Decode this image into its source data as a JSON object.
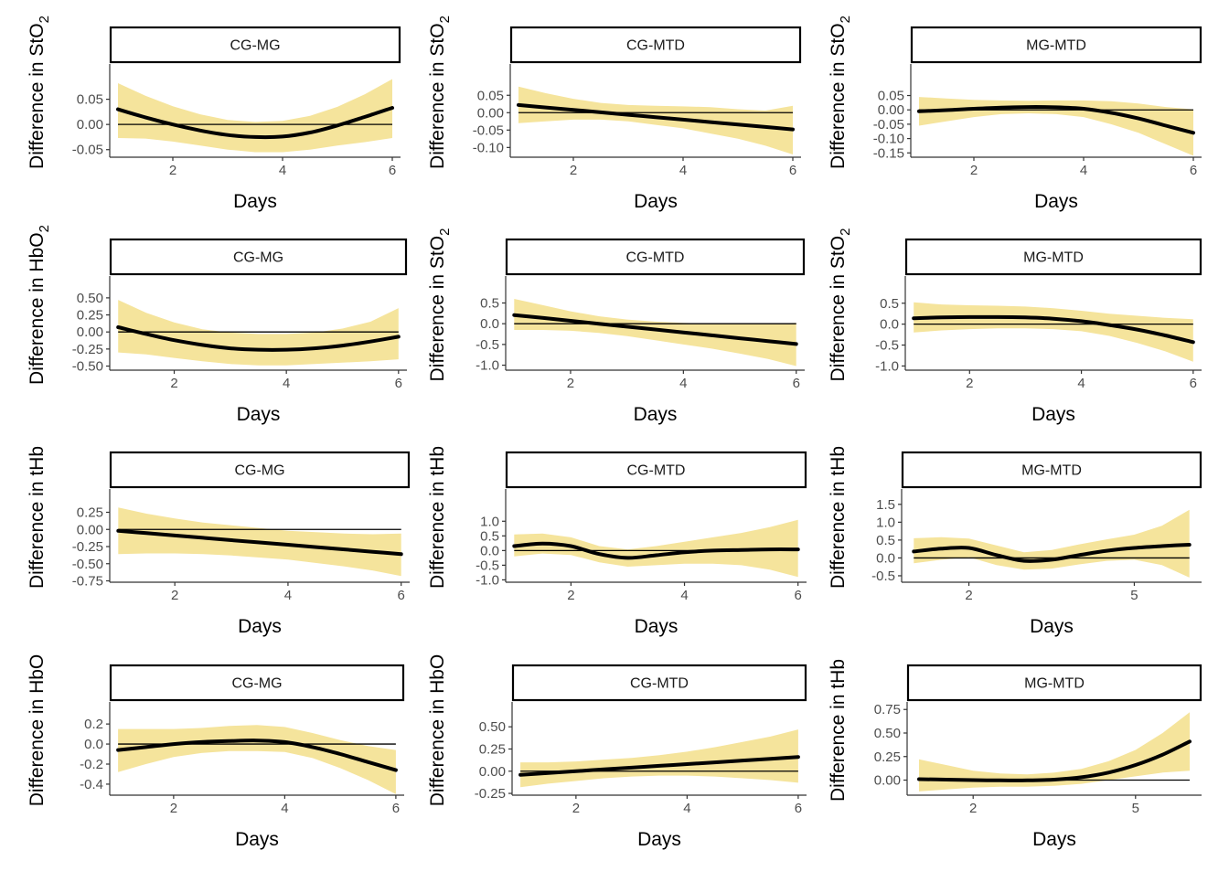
{
  "style": {
    "band_color": "#f5e49c",
    "line_color": "#000000",
    "ref_line_color": "#000000",
    "strip_border": "#000000",
    "axis_color": "#333333"
  },
  "chart_data": [
    {
      "type": "line",
      "strip": "CG-MG",
      "xlabel": "Days",
      "ylabel": "Difference in StO",
      "ylabel_sub": "2",
      "xlim": [
        0.85,
        6.15
      ],
      "ylim": [
        -0.065,
        0.12
      ],
      "xticks": [
        2,
        4,
        6
      ],
      "yticks": [
        -0.05,
        0,
        0.05
      ],
      "ytick_labels": [
        "-0.05",
        "0.00",
        "0.05"
      ],
      "x": [
        1,
        1.5,
        2,
        2.5,
        3,
        3.5,
        4,
        4.5,
        5,
        5.5,
        6
      ],
      "fit": [
        0.03,
        0.014,
        0.0,
        -0.012,
        -0.021,
        -0.025,
        -0.024,
        -0.016,
        -0.002,
        0.015,
        0.033
      ],
      "lower": [
        -0.027,
        -0.028,
        -0.034,
        -0.042,
        -0.05,
        -0.055,
        -0.055,
        -0.05,
        -0.042,
        -0.035,
        -0.027
      ],
      "upper": [
        0.082,
        0.057,
        0.036,
        0.02,
        0.009,
        0.005,
        0.007,
        0.017,
        0.035,
        0.06,
        0.09
      ]
    },
    {
      "type": "line",
      "strip": "CG-MTD",
      "xlabel": "Days",
      "ylabel": "Difference in StO",
      "ylabel_sub": "2",
      "xlim": [
        0.85,
        6.15
      ],
      "ylim": [
        -0.128,
        0.14
      ],
      "xticks": [
        2,
        4,
        6
      ],
      "yticks": [
        -0.1,
        -0.05,
        0,
        0.05
      ],
      "ytick_labels": [
        "-0.10",
        "-0.05",
        "0.00",
        "0.05"
      ],
      "x": [
        1,
        1.5,
        2,
        2.5,
        3,
        3.5,
        4,
        4.5,
        5,
        5.5,
        6
      ],
      "fit": [
        0.022,
        0.015,
        0.008,
        0.001,
        -0.006,
        -0.013,
        -0.02,
        -0.027,
        -0.034,
        -0.041,
        -0.048
      ],
      "lower": [
        -0.03,
        -0.025,
        -0.02,
        -0.02,
        -0.025,
        -0.035,
        -0.045,
        -0.06,
        -0.075,
        -0.095,
        -0.12
      ],
      "upper": [
        0.075,
        0.056,
        0.04,
        0.028,
        0.022,
        0.02,
        0.018,
        0.016,
        0.01,
        0.006,
        0.02
      ]
    },
    {
      "type": "line",
      "strip": "MG-MTD",
      "xlabel": "Days",
      "ylabel": "Difference in StO",
      "ylabel_sub": "2",
      "xlim": [
        0.85,
        6.15
      ],
      "ylim": [
        -0.165,
        0.16
      ],
      "xticks": [
        2,
        4,
        6
      ],
      "yticks": [
        -0.15,
        -0.1,
        -0.05,
        0,
        0.05
      ],
      "ytick_labels": [
        "-0.15",
        "-0.10",
        "-0.05",
        "0.00",
        "0.05"
      ],
      "x": [
        1,
        1.5,
        2,
        2.5,
        3,
        3.5,
        4,
        4.5,
        5,
        5.5,
        6
      ],
      "fit": [
        -0.005,
        -0.001,
        0.004,
        0.008,
        0.01,
        0.009,
        0.004,
        -0.01,
        -0.03,
        -0.055,
        -0.08
      ],
      "lower": [
        -0.055,
        -0.04,
        -0.025,
        -0.015,
        -0.012,
        -0.015,
        -0.025,
        -0.05,
        -0.08,
        -0.12,
        -0.16
      ],
      "upper": [
        0.045,
        0.04,
        0.035,
        0.033,
        0.032,
        0.033,
        0.033,
        0.03,
        0.022,
        0.01,
        0.002
      ]
    },
    {
      "type": "line",
      "strip": "CG-MG",
      "xlabel": "Days",
      "ylabel": "Difference in HbO",
      "ylabel_sub": "2",
      "xlim": [
        0.85,
        6.15
      ],
      "ylim": [
        -0.56,
        0.82
      ],
      "xticks": [
        2,
        4,
        6
      ],
      "yticks": [
        -0.5,
        -0.25,
        0,
        0.25,
        0.5
      ],
      "ytick_labels": [
        "-0.50",
        "-0.25",
        "0.00",
        "0.25",
        "0.50"
      ],
      "x": [
        1,
        1.5,
        2,
        2.5,
        3,
        3.5,
        4,
        4.5,
        5,
        5.5,
        6
      ],
      "fit": [
        0.07,
        -0.03,
        -0.12,
        -0.19,
        -0.24,
        -0.26,
        -0.26,
        -0.24,
        -0.2,
        -0.14,
        -0.07
      ],
      "lower": [
        -0.3,
        -0.33,
        -0.38,
        -0.43,
        -0.47,
        -0.49,
        -0.49,
        -0.47,
        -0.45,
        -0.43,
        -0.4
      ],
      "upper": [
        0.47,
        0.28,
        0.14,
        0.04,
        -0.01,
        -0.03,
        -0.03,
        -0.01,
        0.05,
        0.15,
        0.35
      ]
    },
    {
      "type": "line",
      "strip": "CG-MTD",
      "xlabel": "Days",
      "ylabel": "Difference in StO",
      "ylabel_sub": "2",
      "xlim": [
        0.85,
        6.15
      ],
      "ylim": [
        -1.12,
        1.15
      ],
      "xticks": [
        2,
        4,
        6
      ],
      "yticks": [
        -1,
        -0.5,
        0,
        0.5
      ],
      "ytick_labels": [
        "-1.0",
        "-0.5",
        "0.0",
        "0.5"
      ],
      "x": [
        1,
        1.5,
        2,
        2.5,
        3,
        3.5,
        4,
        4.5,
        5,
        5.5,
        6
      ],
      "fit": [
        0.21,
        0.14,
        0.07,
        0.0,
        -0.07,
        -0.14,
        -0.21,
        -0.28,
        -0.35,
        -0.42,
        -0.49
      ],
      "lower": [
        -0.15,
        -0.15,
        -0.17,
        -0.22,
        -0.3,
        -0.4,
        -0.5,
        -0.6,
        -0.72,
        -0.85,
        -1.02
      ],
      "upper": [
        0.6,
        0.45,
        0.3,
        0.18,
        0.1,
        0.05,
        0.02,
        0.0,
        0.0,
        0.0,
        0.02
      ]
    },
    {
      "type": "line",
      "strip": "MG-MTD",
      "xlabel": "Days",
      "ylabel": "Difference in StO",
      "ylabel_sub": "2",
      "xlim": [
        0.85,
        6.15
      ],
      "ylim": [
        -1.1,
        1.15
      ],
      "xticks": [
        2,
        4,
        6
      ],
      "yticks": [
        -1,
        -0.5,
        0,
        0.5
      ],
      "ytick_labels": [
        "-1.0",
        "-0.5",
        "0.0",
        "0.5"
      ],
      "x": [
        1,
        1.5,
        2,
        2.5,
        3,
        3.5,
        4,
        4.5,
        5,
        5.5,
        6
      ],
      "fit": [
        0.14,
        0.16,
        0.17,
        0.17,
        0.16,
        0.13,
        0.07,
        -0.02,
        -0.13,
        -0.27,
        -0.43
      ],
      "lower": [
        -0.2,
        -0.15,
        -0.12,
        -0.1,
        -0.1,
        -0.12,
        -0.17,
        -0.28,
        -0.45,
        -0.65,
        -0.9
      ],
      "upper": [
        0.52,
        0.47,
        0.45,
        0.44,
        0.42,
        0.38,
        0.32,
        0.25,
        0.2,
        0.15,
        0.12
      ]
    },
    {
      "type": "line",
      "strip": "CG-MG",
      "xlabel": "Days",
      "ylabel": "Difference in tHb",
      "ylabel_sub": "",
      "xlim": [
        0.85,
        6.15
      ],
      "ylim": [
        -0.77,
        0.59
      ],
      "xticks": [
        2,
        4,
        6
      ],
      "yticks": [
        -0.75,
        -0.5,
        -0.25,
        0,
        0.25
      ],
      "ytick_labels": [
        "-0.75",
        "-0.50",
        "-0.25",
        "0.00",
        "0.25"
      ],
      "x": [
        1,
        1.5,
        2,
        2.5,
        3,
        3.5,
        4,
        4.5,
        5,
        5.5,
        6
      ],
      "fit": [
        -0.02,
        -0.054,
        -0.088,
        -0.122,
        -0.156,
        -0.19,
        -0.224,
        -0.258,
        -0.292,
        -0.326,
        -0.36
      ],
      "lower": [
        -0.36,
        -0.35,
        -0.35,
        -0.36,
        -0.38,
        -0.41,
        -0.44,
        -0.49,
        -0.54,
        -0.6,
        -0.68
      ],
      "upper": [
        0.32,
        0.23,
        0.16,
        0.1,
        0.06,
        0.02,
        -0.02,
        -0.04,
        -0.06,
        -0.07,
        -0.06
      ]
    },
    {
      "type": "line",
      "strip": "CG-MTD",
      "xlabel": "Days",
      "ylabel": "Difference in tHb",
      "ylabel_sub": "",
      "xlim": [
        0.85,
        6.15
      ],
      "ylim": [
        -1.08,
        2.1
      ],
      "xticks": [
        2,
        4,
        6
      ],
      "yticks": [
        -1,
        -0.5,
        0,
        0.5,
        1
      ],
      "ytick_labels": [
        "-1.0",
        "-0.5",
        "0.0",
        "0.5",
        "1.0"
      ],
      "x": [
        1,
        1.5,
        2,
        2.5,
        3,
        3.5,
        4,
        4.5,
        5,
        5.5,
        6
      ],
      "fit": [
        0.15,
        0.24,
        0.15,
        -0.12,
        -0.25,
        -0.16,
        -0.06,
        0.0,
        0.02,
        0.04,
        0.04
      ],
      "lower": [
        -0.2,
        -0.1,
        -0.15,
        -0.4,
        -0.55,
        -0.5,
        -0.45,
        -0.45,
        -0.5,
        -0.65,
        -0.9
      ],
      "upper": [
        0.55,
        0.58,
        0.45,
        0.15,
        0.04,
        0.15,
        0.3,
        0.45,
        0.6,
        0.8,
        1.05
      ]
    },
    {
      "type": "line",
      "strip": "MG-MTD",
      "xlabel": "Days",
      "ylabel": "Difference in tHb",
      "ylabel_sub": "",
      "xlim": [
        0.78,
        6.22
      ],
      "ylim": [
        -0.68,
        1.93
      ],
      "xticks": [
        2,
        5
      ],
      "yticks": [
        -0.5,
        0,
        0.5,
        1,
        1.5
      ],
      "ytick_labels": [
        "-0.5",
        "0.0",
        "0.5",
        "1.0",
        "1.5"
      ],
      "x": [
        1,
        1.5,
        2,
        2.5,
        3,
        3.5,
        4,
        4.5,
        5,
        5.5,
        6
      ],
      "fit": [
        0.18,
        0.26,
        0.28,
        0.08,
        -0.08,
        -0.05,
        0.08,
        0.2,
        0.28,
        0.33,
        0.37
      ],
      "lower": [
        -0.15,
        -0.05,
        0.02,
        -0.2,
        -0.33,
        -0.3,
        -0.18,
        -0.08,
        -0.05,
        -0.2,
        -0.55
      ],
      "upper": [
        0.55,
        0.58,
        0.54,
        0.35,
        0.16,
        0.22,
        0.38,
        0.52,
        0.65,
        0.9,
        1.35
      ]
    },
    {
      "type": "line",
      "strip": "CG-MG",
      "xlabel": "Days",
      "ylabel": "Difference in HbO",
      "ylabel_sub": "",
      "xlim": [
        0.85,
        6.15
      ],
      "ylim": [
        -0.51,
        0.42
      ],
      "xticks": [
        2,
        4,
        6
      ],
      "yticks": [
        -0.4,
        -0.2,
        0,
        0.2
      ],
      "ytick_labels": [
        "-0.4",
        "-0.2",
        "0.0",
        "0.2"
      ],
      "x": [
        1,
        1.5,
        2,
        2.5,
        3,
        3.5,
        4,
        4.5,
        5,
        5.5,
        6
      ],
      "fit": [
        -0.06,
        -0.03,
        0.0,
        0.02,
        0.03,
        0.035,
        0.02,
        -0.03,
        -0.1,
        -0.18,
        -0.26
      ],
      "lower": [
        -0.28,
        -0.2,
        -0.13,
        -0.09,
        -0.07,
        -0.07,
        -0.08,
        -0.14,
        -0.24,
        -0.36,
        -0.5
      ],
      "upper": [
        0.15,
        0.15,
        0.15,
        0.16,
        0.18,
        0.19,
        0.17,
        0.11,
        0.04,
        -0.02,
        -0.06
      ]
    },
    {
      "type": "line",
      "strip": "CG-MTD",
      "xlabel": "Days",
      "ylabel": "Difference in HbO",
      "ylabel_sub": "",
      "xlim": [
        0.85,
        6.15
      ],
      "ylim": [
        -0.27,
        0.78
      ],
      "xticks": [
        2,
        4,
        6
      ],
      "yticks": [
        -0.25,
        0,
        0.25,
        0.5
      ],
      "ytick_labels": [
        "-0.25",
        "0.00",
        "0.25",
        "0.50"
      ],
      "x": [
        1,
        1.5,
        2,
        2.5,
        3,
        3.5,
        4,
        4.5,
        5,
        5.5,
        6
      ],
      "fit": [
        -0.04,
        -0.02,
        0.0,
        0.02,
        0.04,
        0.06,
        0.08,
        0.1,
        0.12,
        0.14,
        0.16
      ],
      "lower": [
        -0.18,
        -0.14,
        -0.11,
        -0.08,
        -0.06,
        -0.05,
        -0.05,
        -0.06,
        -0.08,
        -0.1,
        -0.13
      ],
      "upper": [
        0.1,
        0.1,
        0.11,
        0.13,
        0.15,
        0.18,
        0.22,
        0.27,
        0.33,
        0.39,
        0.47
      ]
    },
    {
      "type": "line",
      "strip": "MG-MTD",
      "xlabel": "Days",
      "ylabel": "Difference in tHb",
      "ylabel_sub": "",
      "xlim": [
        0.78,
        6.22
      ],
      "ylim": [
        -0.16,
        0.83
      ],
      "xticks": [
        2,
        5
      ],
      "yticks": [
        0,
        0.25,
        0.5,
        0.75
      ],
      "ytick_labels": [
        "0.00",
        "0.25",
        "0.50",
        "0.75"
      ],
      "x": [
        1,
        1.5,
        2,
        2.5,
        3,
        3.5,
        4,
        4.5,
        5,
        5.5,
        6
      ],
      "fit": [
        0.01,
        0.005,
        0.0,
        -0.003,
        -0.003,
        0.005,
        0.03,
        0.08,
        0.16,
        0.27,
        0.41
      ],
      "lower": [
        -0.12,
        -0.1,
        -0.08,
        -0.07,
        -0.07,
        -0.06,
        -0.04,
        0.0,
        0.04,
        0.08,
        0.1
      ],
      "upper": [
        0.22,
        0.16,
        0.1,
        0.07,
        0.06,
        0.08,
        0.12,
        0.2,
        0.32,
        0.5,
        0.72
      ]
    }
  ]
}
